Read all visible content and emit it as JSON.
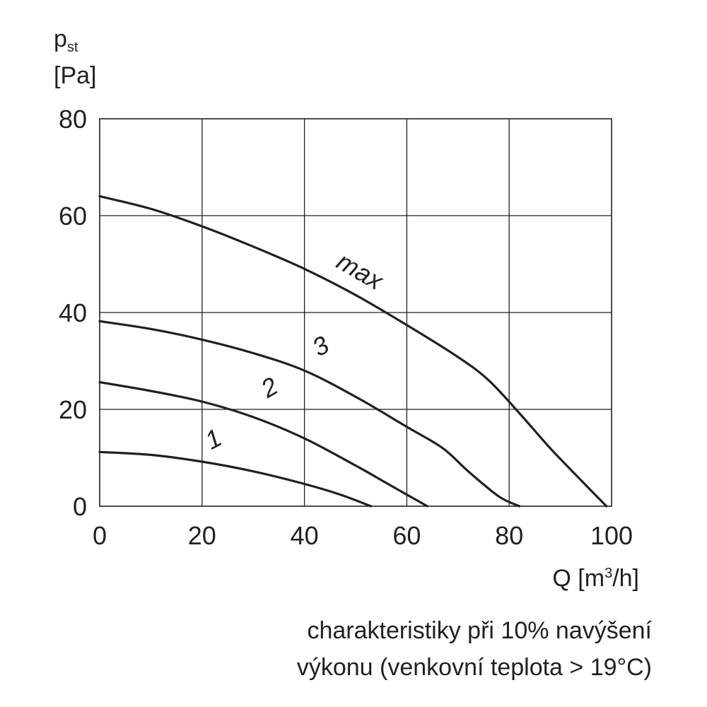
{
  "chart_data": {
    "type": "line",
    "ylabel_symbol": "p",
    "ylabel_subscript": "st",
    "ylabel_unit": "[Pa]",
    "xlabel_main": "Q [m",
    "xlabel_sup": "3",
    "xlabel_end": "/h]",
    "xlim": [
      0,
      100
    ],
    "ylim": [
      0,
      80
    ],
    "x_ticks": [
      0,
      20,
      40,
      60,
      80,
      100
    ],
    "y_ticks": [
      0,
      20,
      40,
      60,
      80
    ],
    "grid": true,
    "series": [
      {
        "name": "1",
        "points": [
          [
            0,
            11.2
          ],
          [
            10,
            10.6
          ],
          [
            20,
            9.2
          ],
          [
            30,
            7.2
          ],
          [
            40,
            4.6
          ],
          [
            47,
            2.4
          ],
          [
            53,
            0
          ]
        ]
      },
      {
        "name": "2",
        "points": [
          [
            0,
            25.6
          ],
          [
            10,
            23.8
          ],
          [
            20,
            21.6
          ],
          [
            30,
            18.4
          ],
          [
            40,
            14.0
          ],
          [
            50,
            8.4
          ],
          [
            56,
            4.8
          ],
          [
            60,
            2.4
          ],
          [
            64,
            0
          ]
        ]
      },
      {
        "name": "3",
        "points": [
          [
            0,
            38.2
          ],
          [
            10,
            36.6
          ],
          [
            20,
            34.4
          ],
          [
            30,
            31.6
          ],
          [
            40,
            28.0
          ],
          [
            50,
            22.6
          ],
          [
            60,
            16.4
          ],
          [
            67,
            12.0
          ],
          [
            72,
            7.2
          ],
          [
            78,
            2.0
          ],
          [
            82,
            0
          ]
        ]
      },
      {
        "name": "max",
        "points": [
          [
            0,
            64.0
          ],
          [
            10,
            61.4
          ],
          [
            20,
            57.8
          ],
          [
            30,
            53.6
          ],
          [
            40,
            49.0
          ],
          [
            50,
            43.6
          ],
          [
            60,
            37.4
          ],
          [
            70,
            30.8
          ],
          [
            76,
            26.0
          ],
          [
            82,
            19.2
          ],
          [
            88,
            12.0
          ],
          [
            94,
            5.4
          ],
          [
            99,
            0
          ]
        ]
      }
    ],
    "series_label_positions": [
      {
        "series": "1",
        "x": 23,
        "y": 12.3
      },
      {
        "series": "2",
        "x": 34,
        "y": 23.0
      },
      {
        "series": "3",
        "x": 44,
        "y": 31.5
      },
      {
        "series": "max",
        "x": 50,
        "y": 47.0
      }
    ]
  },
  "caption": {
    "line1": "charakteristiky při 10% navýšení",
    "line2": "výkonu (venkovní teplota > 19°C)"
  }
}
